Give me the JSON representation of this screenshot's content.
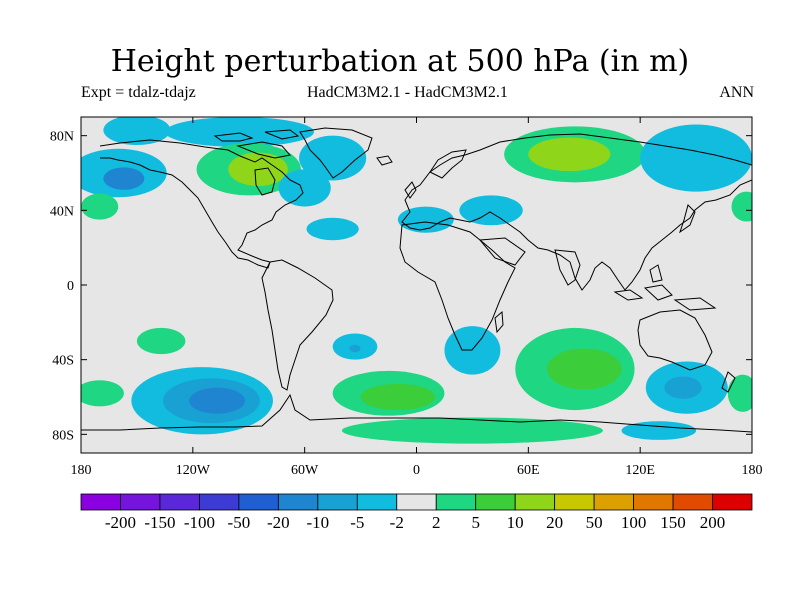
{
  "header": {
    "title": "Height perturbation at 500 hPa (in m)",
    "left": "Expt = tdalz-tdajz",
    "center": "HadCM3M2.1 - HadCM3M2.1",
    "right": "ANN"
  },
  "map": {
    "lon_range": [
      -180,
      180
    ],
    "lat_range": [
      -90,
      90
    ],
    "x_ticks": [
      {
        "lon": -180,
        "label": "180"
      },
      {
        "lon": -120,
        "label": "120W"
      },
      {
        "lon": -60,
        "label": "60W"
      },
      {
        "lon": 0,
        "label": "0"
      },
      {
        "lon": 60,
        "label": "60E"
      },
      {
        "lon": 120,
        "label": "120E"
      },
      {
        "lon": 180,
        "label": "180"
      }
    ],
    "y_ticks": [
      {
        "lat": 80,
        "label": "80N"
      },
      {
        "lat": 40,
        "label": "40N"
      },
      {
        "lat": 0,
        "label": "0"
      },
      {
        "lat": -40,
        "label": "40S"
      },
      {
        "lat": -80,
        "label": "80S"
      }
    ],
    "background_color": "#e6e6e6"
  },
  "colorbar": {
    "colors": [
      "#8a00e0",
      "#7414dc",
      "#5a28d8",
      "#3c3cd4",
      "#1f5fd2",
      "#1f85d0",
      "#19a1d3",
      "#12bcdf",
      "#e6e6e6",
      "#1fd683",
      "#3ccd3a",
      "#8fd61a",
      "#c8c800",
      "#dca000",
      "#e07800",
      "#e04b00",
      "#dc0000"
    ],
    "labels": [
      "-200",
      "-150",
      "-100",
      "-50",
      "-20",
      "-10",
      "-5",
      "-2",
      "2",
      "5",
      "10",
      "20",
      "50",
      "100",
      "150",
      "200"
    ]
  },
  "fields": [
    {
      "lon": -150,
      "lat": 83,
      "rx": 18,
      "ry": 8,
      "c": "#12bcdf"
    },
    {
      "lon": -95,
      "lat": 82,
      "rx": 40,
      "ry": 8,
      "c": "#12bcdf"
    },
    {
      "lon": -160,
      "lat": 60,
      "rx": 26,
      "ry": 13,
      "c": "#12bcdf"
    },
    {
      "lon": -157,
      "lat": 57,
      "rx": 11,
      "ry": 6,
      "c": "#1f85d0"
    },
    {
      "lon": -170,
      "lat": 42,
      "rx": 10,
      "ry": 7,
      "c": "#1fd683"
    },
    {
      "lon": -90,
      "lat": 62,
      "rx": 28,
      "ry": 14,
      "c": "#1fd683"
    },
    {
      "lon": -85,
      "lat": 62,
      "rx": 16,
      "ry": 9,
      "c": "#8fd61a"
    },
    {
      "lon": -45,
      "lat": 68,
      "rx": 18,
      "ry": 12,
      "c": "#12bcdf"
    },
    {
      "lon": -60,
      "lat": 52,
      "rx": 14,
      "ry": 10,
      "c": "#12bcdf"
    },
    {
      "lon": -45,
      "lat": 30,
      "rx": 14,
      "ry": 6,
      "c": "#12bcdf"
    },
    {
      "lon": 5,
      "lat": 35,
      "rx": 15,
      "ry": 7,
      "c": "#12bcdf"
    },
    {
      "lon": 40,
      "lat": 40,
      "rx": 17,
      "ry": 8,
      "c": "#12bcdf"
    },
    {
      "lon": 85,
      "lat": 70,
      "rx": 38,
      "ry": 15,
      "c": "#1fd683"
    },
    {
      "lon": 82,
      "lat": 70,
      "rx": 22,
      "ry": 9,
      "c": "#8fd61a"
    },
    {
      "lon": 150,
      "lat": 68,
      "rx": 30,
      "ry": 18,
      "c": "#12bcdf"
    },
    {
      "lon": 177,
      "lat": 42,
      "rx": 8,
      "ry": 8,
      "c": "#1fd683"
    },
    {
      "lon": -137,
      "lat": -30,
      "rx": 13,
      "ry": 7,
      "c": "#1fd683"
    },
    {
      "lon": -33,
      "lat": -33,
      "rx": 12,
      "ry": 7,
      "c": "#12bcdf"
    },
    {
      "lon": -33,
      "lat": -34,
      "rx": 3,
      "ry": 2,
      "c": "#19a1d3"
    },
    {
      "lon": 30,
      "lat": -35,
      "rx": 15,
      "ry": 13,
      "c": "#12bcdf"
    },
    {
      "lon": -115,
      "lat": -62,
      "rx": 38,
      "ry": 18,
      "c": "#12bcdf"
    },
    {
      "lon": -110,
      "lat": -62,
      "rx": 26,
      "ry": 12,
      "c": "#19a1d3"
    },
    {
      "lon": -107,
      "lat": -62,
      "rx": 15,
      "ry": 7,
      "c": "#1f85d0"
    },
    {
      "lon": -170,
      "lat": -58,
      "rx": 13,
      "ry": 7,
      "c": "#1fd683"
    },
    {
      "lon": -15,
      "lat": -58,
      "rx": 30,
      "ry": 12,
      "c": "#1fd683"
    },
    {
      "lon": -10,
      "lat": -60,
      "rx": 20,
      "ry": 7,
      "c": "#3ccd3a"
    },
    {
      "lon": 85,
      "lat": -45,
      "rx": 32,
      "ry": 22,
      "c": "#1fd683"
    },
    {
      "lon": 90,
      "lat": -45,
      "rx": 20,
      "ry": 11,
      "c": "#3ccd3a"
    },
    {
      "lon": 30,
      "lat": -78,
      "rx": 70,
      "ry": 7,
      "c": "#1fd683"
    },
    {
      "lon": 145,
      "lat": -55,
      "rx": 22,
      "ry": 14,
      "c": "#12bcdf"
    },
    {
      "lon": 143,
      "lat": -55,
      "rx": 10,
      "ry": 6,
      "c": "#19a1d3"
    },
    {
      "lon": 130,
      "lat": -78,
      "rx": 20,
      "ry": 5,
      "c": "#12bcdf"
    },
    {
      "lon": 175,
      "lat": -58,
      "rx": 8,
      "ry": 10,
      "c": "#1fd683"
    }
  ]
}
